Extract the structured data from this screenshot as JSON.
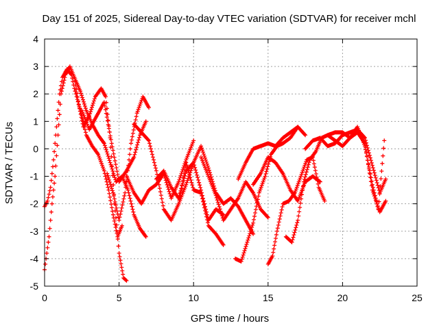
{
  "chart_data": {
    "type": "scatter",
    "title": "Day 151 of 2025, Sidereal Day-to-day VTEC variation (SDTVAR) for receiver mchl",
    "xlabel": "GPS time / hours",
    "ylabel": "SDTVAR / TECUs",
    "xlim": [
      0,
      25
    ],
    "ylim": [
      -5,
      4
    ],
    "xticks": [
      "0",
      "5",
      "10",
      "15",
      "20",
      "25"
    ],
    "yticks": [
      "-5",
      "-4",
      "-3",
      "-2",
      "-1",
      "0",
      "1",
      "2",
      "3",
      "4"
    ],
    "grid": true,
    "legend": "none",
    "marker": "plus",
    "color": "#ff0000",
    "series": [
      {
        "x": [
          0.0,
          0.2,
          0.4,
          0.6,
          0.8,
          1.0,
          1.2,
          1.5,
          1.8,
          2.0,
          2.2,
          2.5,
          2.8,
          3.2,
          3.6,
          4.0,
          4.3,
          4.6,
          4.9,
          5.2
        ],
        "y": [
          -2.1,
          -1.9,
          -1.4,
          -0.4,
          0.8,
          2.0,
          2.6,
          2.9,
          2.7,
          2.2,
          1.8,
          1.2,
          0.5,
          0.1,
          -0.2,
          -0.8,
          -1.5,
          -2.4,
          -3.2,
          -2.8
        ]
      },
      {
        "x": [
          0.0,
          0.1,
          0.3,
          0.5,
          0.7,
          0.9,
          1.1,
          1.4,
          1.7,
          2.0,
          2.3,
          2.6,
          3.0,
          3.4,
          3.8,
          4.1,
          4.4,
          4.7,
          5.0,
          5.3,
          5.5
        ],
        "y": [
          -4.4,
          -4.0,
          -3.2,
          -2.0,
          -1.0,
          0.5,
          2.0,
          2.7,
          3.0,
          2.6,
          1.6,
          0.8,
          1.2,
          1.9,
          2.2,
          1.9,
          0.4,
          -2.0,
          -3.8,
          -4.7,
          -4.8
        ]
      },
      {
        "x": [
          2.0,
          2.4,
          2.8,
          3.2,
          3.6,
          4.0,
          4.4,
          4.8,
          5.2,
          5.6,
          6.0,
          6.4,
          6.8
        ],
        "y": [
          2.6,
          2.1,
          1.4,
          0.9,
          0.5,
          0.2,
          -0.5,
          -1.2,
          -1.0,
          -1.5,
          -2.4,
          -2.9,
          -3.2
        ]
      },
      {
        "x": [
          2.5,
          3.0,
          3.5,
          4.0,
          4.5,
          5.0,
          5.5,
          6.0,
          6.4,
          6.8
        ],
        "y": [
          1.4,
          0.7,
          1.2,
          1.7,
          0.2,
          -1.2,
          -0.8,
          -0.3,
          0.5,
          1.0
        ]
      },
      {
        "x": [
          4.2,
          4.6,
          5.0,
          5.4,
          5.8,
          6.2,
          6.6,
          7.0
        ],
        "y": [
          -0.9,
          -1.6,
          -2.6,
          -1.6,
          0.2,
          1.3,
          1.9,
          1.5
        ]
      },
      {
        "x": [
          5.5,
          6.0,
          6.5,
          7.0,
          7.5,
          8.0,
          8.5,
          9.0,
          9.5,
          10.0
        ],
        "y": [
          -1.0,
          -1.6,
          -2.0,
          -1.5,
          -1.3,
          -0.9,
          -1.8,
          -1.2,
          -0.4,
          0.3
        ]
      },
      {
        "x": [
          6.0,
          6.5,
          7.0,
          7.5,
          8.0,
          8.5,
          9.0,
          9.5,
          10.0,
          10.5,
          11.0,
          11.5,
          12.0
        ],
        "y": [
          0.9,
          0.6,
          0.3,
          -0.8,
          -2.2,
          -2.6,
          -2.0,
          -0.5,
          -1.5,
          -1.6,
          -2.8,
          -3.1,
          -3.5
        ]
      },
      {
        "x": [
          7.5,
          8.0,
          8.5,
          9.0,
          9.5,
          10.0,
          10.5,
          11.0,
          11.5,
          12.0
        ],
        "y": [
          -1.1,
          -0.8,
          -1.4,
          -1.8,
          -0.8,
          -0.5,
          -1.5,
          -2.6,
          -2.2,
          -2.4
        ]
      },
      {
        "x": [
          9.0,
          9.5,
          10.0,
          10.5,
          11.0,
          11.5,
          12.0,
          12.5,
          13.0,
          13.5,
          14.0
        ],
        "y": [
          -2.0,
          -1.3,
          -0.5,
          0.1,
          -0.7,
          -1.6,
          -2.0,
          -1.8,
          -2.1,
          -2.6,
          -3.1
        ]
      },
      {
        "x": [
          10.5,
          11.0,
          11.5,
          12.0,
          12.5,
          13.0,
          13.5,
          14.0,
          14.5,
          15.0
        ],
        "y": [
          -0.3,
          -1.0,
          -1.7,
          -2.6,
          -2.2,
          -1.8,
          -1.2,
          -1.6,
          -2.2,
          -2.5
        ]
      },
      {
        "x": [
          12.8,
          13.2,
          13.6,
          14.0,
          14.4,
          14.8,
          15.2,
          15.6,
          16.0,
          16.5,
          17.0
        ],
        "y": [
          -4.0,
          -4.1,
          -3.4,
          -2.7,
          -1.6,
          -1.0,
          -0.2,
          0.1,
          0.2,
          0.4,
          0.8
        ]
      },
      {
        "x": [
          13.0,
          13.5,
          14.0,
          14.5,
          15.0,
          15.5,
          16.0,
          16.5,
          17.0,
          17.5
        ],
        "y": [
          -1.1,
          -0.5,
          0.0,
          0.1,
          0.2,
          0.1,
          0.4,
          0.6,
          0.8,
          0.5
        ]
      },
      {
        "x": [
          14.0,
          14.5,
          15.0,
          15.5,
          16.0,
          16.5,
          17.0,
          17.5,
          18.0,
          18.5
        ],
        "y": [
          -1.3,
          -0.9,
          -0.3,
          -0.5,
          -0.9,
          -1.5,
          -1.9,
          -1.2,
          -1.0,
          -1.2
        ]
      },
      {
        "x": [
          15.0,
          15.3,
          15.6,
          16.0,
          16.4,
          16.8,
          17.2,
          17.6,
          18.0,
          18.4,
          18.8
        ],
        "y": [
          -4.2,
          -3.9,
          -3.0,
          -2.0,
          -1.9,
          -1.6,
          -1.0,
          -0.4,
          -0.3,
          -1.4,
          -1.9
        ]
      },
      {
        "x": [
          16.2,
          16.6,
          17.0,
          17.4,
          17.8,
          18.2,
          18.6,
          19.0,
          19.5,
          20.0,
          20.5,
          21.0,
          21.5,
          22.0,
          22.5,
          22.9
        ],
        "y": [
          -3.2,
          -3.4,
          -2.6,
          -1.2,
          -0.4,
          -0.1,
          0.4,
          0.5,
          0.6,
          0.6,
          0.4,
          0.6,
          0.2,
          -1.5,
          -2.3,
          -1.9
        ]
      },
      {
        "x": [
          17.5,
          18.0,
          18.5,
          19.0,
          19.5,
          20.0,
          20.5,
          21.0,
          21.5,
          22.0,
          22.5,
          22.9
        ],
        "y": [
          0.0,
          0.3,
          0.4,
          0.1,
          0.2,
          0.5,
          0.6,
          0.7,
          0.4,
          -0.6,
          -1.6,
          -1.1
        ]
      },
      {
        "x": [
          19.0,
          19.5,
          20.0,
          20.5,
          21.0,
          21.5,
          22.0,
          22.4,
          22.8
        ],
        "y": [
          0.5,
          0.3,
          0.1,
          0.4,
          0.8,
          0.1,
          -1.3,
          -2.2,
          0.3
        ]
      }
    ]
  }
}
